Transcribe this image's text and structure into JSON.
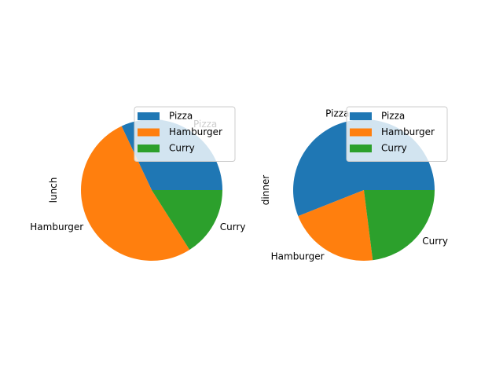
{
  "chart_data": [
    {
      "type": "pie",
      "ylabel": "lunch",
      "categories": [
        "Pizza",
        "Hamburger",
        "Curry"
      ],
      "values": [
        0.32,
        0.52,
        0.16
      ],
      "colors": [
        "#1f77b4",
        "#ff7f0e",
        "#2ca02c"
      ],
      "legend": {
        "position": "top-right",
        "entries": [
          "Pizza",
          "Hamburger",
          "Curry"
        ]
      }
    },
    {
      "type": "pie",
      "ylabel": "dinner",
      "categories": [
        "Pizza",
        "Hamburger",
        "Curry"
      ],
      "values": [
        0.56,
        0.21,
        0.23
      ],
      "colors": [
        "#1f77b4",
        "#ff7f0e",
        "#2ca02c"
      ],
      "legend": {
        "position": "top-right",
        "entries": [
          "Pizza",
          "Hamburger",
          "Curry"
        ]
      }
    }
  ]
}
